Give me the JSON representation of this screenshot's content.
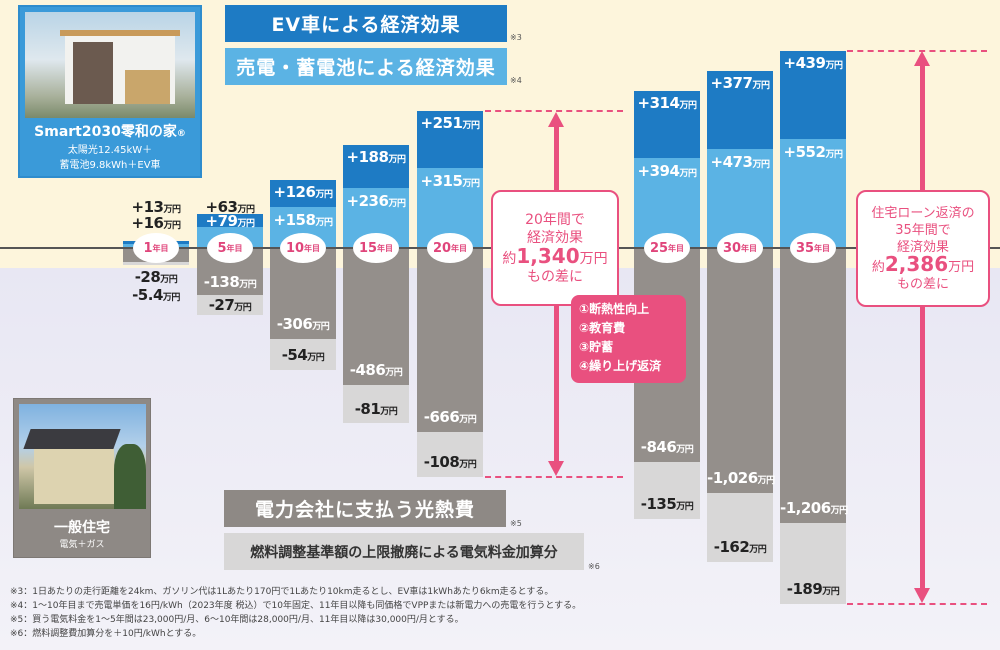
{
  "headers": {
    "ev": "EV車による経済効果",
    "ev_note": "※3",
    "sale": "売電・蓄電池による経済効果",
    "sale_note": "※4",
    "utility": "電力会社に支払う光熱費",
    "utility_note": "※5",
    "fuel": "燃料調整基準額の上限撤廃による電気料金加算分",
    "fuel_note": "※6"
  },
  "smart_house": {
    "name": "Smart2030零和の家",
    "mark": "®",
    "spec1": "太陽光12.45kW＋",
    "spec2": "蓄電池9.8kWh＋EV車"
  },
  "general_house": {
    "name": "一般住宅",
    "spec": "電気＋ガス"
  },
  "unit": "万円",
  "year_suffix": "年目",
  "colors": {
    "ev": "#1e7bc4",
    "sale": "#5bb3e4",
    "utility": "#948f8b",
    "fuel": "#d8d7d7",
    "accent": "#e9507f"
  },
  "chart_data": {
    "type": "bar",
    "stacked": true,
    "categories": [
      "1",
      "5",
      "10",
      "15",
      "20",
      "25",
      "30",
      "35"
    ],
    "series": [
      {
        "name": "EV車による経済効果",
        "values": [
          13,
          63,
          126,
          188,
          251,
          314,
          377,
          439
        ],
        "labels": [
          "+13",
          "+63",
          "+126",
          "+188",
          "+251",
          "+314",
          "+377",
          "+439"
        ]
      },
      {
        "name": "売電・蓄電池による経済効果",
        "values": [
          16,
          79,
          158,
          236,
          315,
          394,
          473,
          552
        ],
        "labels": [
          "+16",
          "+79",
          "+158",
          "+236",
          "+315",
          "+394",
          "+473",
          "+552"
        ]
      },
      {
        "name": "電力会社に支払う光熱費",
        "values": [
          -28,
          -138,
          -306,
          -486,
          -666,
          -846,
          -1026,
          -1206
        ],
        "labels": [
          "-28",
          "-138",
          "-306",
          "-486",
          "-666",
          "-846",
          "-1,026",
          "-1,206"
        ]
      },
      {
        "name": "燃料調整基準額の上限撤廃による電気料金加算分",
        "values": [
          -5.4,
          -27,
          -54,
          -81,
          -108,
          -135,
          -162,
          -189
        ],
        "labels": [
          "-5.4",
          "-27",
          "-54",
          "-81",
          "-108",
          "-135",
          "-162",
          "-189"
        ]
      }
    ]
  },
  "callout20": {
    "l1": "20年間で",
    "l2": "経済効果",
    "pre": "約",
    "amount": "1,340",
    "unit": "万円",
    "l4": "もの差に"
  },
  "uses": [
    "①断熱性向上",
    "②教育費",
    "③貯蓄",
    "④繰り上げ返済"
  ],
  "callout35": {
    "l1": "住宅ローン返済の",
    "l2": "35年間で",
    "l3": "経済効果",
    "pre": "約",
    "amount": "2,386",
    "unit": "万円",
    "l5": "もの差に"
  },
  "footnotes": [
    "※3：1日あたりの走行距離を24km、ガソリン代は1Lあたり170円で1Lあたり10km走るとし、EV車は1kWhあたり6km走るとする。",
    "※4：1～10年目まで売電単価を16円/kWh（2023年度 税込）で10年固定、11年目以降も同価格でVPPまたは新電力への売電を行うとする。",
    "※5：買う電気料金を1～5年間は23,000円/月、6～10年間は28,000円/月、11年目以降は30,000円/月とする。",
    "※6：燃料調整費加算分を＋10円/kWhとする。"
  ]
}
